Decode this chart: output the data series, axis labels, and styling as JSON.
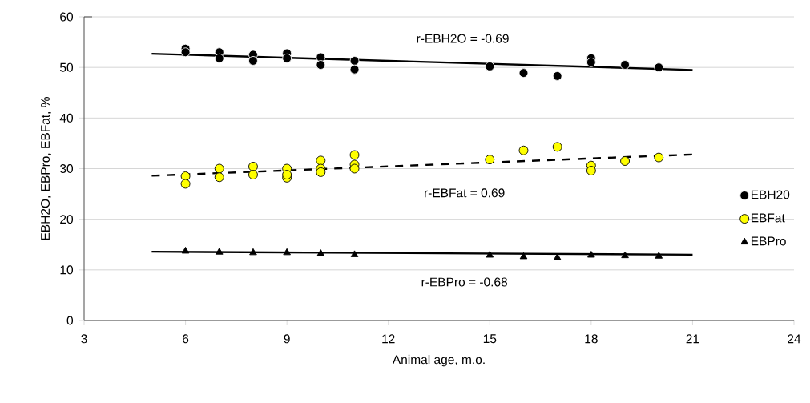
{
  "chart_data": {
    "type": "scatter",
    "xlabel": "Animal age, m.o.",
    "ylabel": "EBH2O, EBPro, EBFat, %",
    "xlim": [
      3,
      24
    ],
    "xticks": [
      3,
      6,
      9,
      12,
      15,
      18,
      21,
      24
    ],
    "ylim": [
      0,
      60
    ],
    "yticks": [
      0,
      10,
      20,
      30,
      40,
      50,
      60
    ],
    "grid": "y",
    "legend": "right",
    "series": [
      {
        "name": "EBH20",
        "marker": "circle",
        "color": "#000000",
        "x": [
          6,
          6,
          7,
          7,
          8,
          8,
          9,
          9,
          10,
          10,
          11,
          11,
          15,
          16,
          17,
          18,
          18,
          19,
          20
        ],
        "values": [
          53.7,
          53.0,
          53.0,
          51.8,
          52.5,
          51.3,
          52.8,
          51.8,
          52.0,
          50.5,
          51.3,
          49.6,
          50.2,
          48.9,
          48.3,
          51.8,
          51.0,
          50.5,
          50.0
        ]
      },
      {
        "name": "EBFat",
        "marker": "circle",
        "color": "#ffff00",
        "x": [
          6,
          6,
          7,
          7,
          8,
          8,
          9,
          9,
          9,
          10,
          10,
          10,
          11,
          11,
          11,
          15,
          16,
          17,
          18,
          18,
          19,
          20
        ],
        "values": [
          28.5,
          27.0,
          30.0,
          28.3,
          30.4,
          28.8,
          30.0,
          28.2,
          28.8,
          31.6,
          30.0,
          29.3,
          32.7,
          30.8,
          30.0,
          31.8,
          33.6,
          34.3,
          30.6,
          29.6,
          31.5,
          32.2
        ]
      },
      {
        "name": "EBPro",
        "marker": "triangle",
        "color": "#000000",
        "x": [
          6,
          7,
          8,
          9,
          10,
          11,
          15,
          16,
          17,
          18,
          19,
          20
        ],
        "values": [
          13.7,
          13.5,
          13.4,
          13.4,
          13.2,
          13.0,
          12.9,
          12.6,
          12.4,
          12.9,
          12.8,
          12.7
        ]
      },
      {
        "type": "line",
        "marker": "none",
        "line_style": "solid",
        "color": "#000000",
        "x": [
          5,
          21
        ],
        "values": [
          52.7,
          49.5
        ]
      },
      {
        "type": "line",
        "marker": "none",
        "line_style": "dashed",
        "color": "#000000",
        "x": [
          5,
          21
        ],
        "values": [
          28.6,
          32.8
        ]
      },
      {
        "type": "line",
        "marker": "none",
        "line_style": "solid",
        "color": "#000000",
        "x": [
          5,
          21
        ],
        "values": [
          13.6,
          13.0
        ]
      }
    ],
    "annotations": [
      "r-EBH2O = -0.69",
      "r-EBFat = 0.69",
      "r-EBPro = -0.68"
    ]
  }
}
